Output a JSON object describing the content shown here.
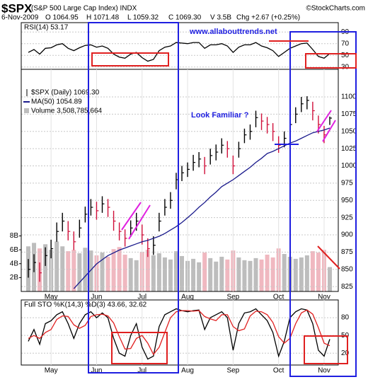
{
  "header": {
    "symbol": "$SPX",
    "name": "(S&P 500 Large Cap Index) INDX",
    "copyright": "©StockCharts.com",
    "date": "6-Nov-2009",
    "quote": [
      "O 1064.95",
      "H 1071.48",
      "L 1059.32",
      "C 1069.30",
      "V 3.5B",
      "Chg +2.67 (+0.25%)"
    ]
  },
  "annotations": [
    "www.allabouttrends.net",
    "Look Familiar ?"
  ],
  "chart_data": [
    {
      "type": "line",
      "title": "RSI(14) 53.17",
      "color": "#000000",
      "values": [
        55,
        60,
        52,
        62,
        63,
        68,
        70,
        62,
        58,
        63,
        67,
        68,
        64,
        66,
        62,
        52,
        47,
        45,
        52,
        55,
        46,
        40,
        43,
        58,
        64,
        66,
        72,
        71,
        70,
        72,
        72,
        62,
        68,
        68,
        70,
        66,
        55,
        64,
        68,
        68,
        72,
        66,
        63,
        58,
        48,
        55,
        62,
        66,
        70,
        71,
        60,
        48,
        45,
        53.17
      ],
      "ylim": [
        26,
        106
      ],
      "yticks": [
        90,
        70,
        50,
        30
      ]
    },
    {
      "type": "ohlc",
      "title": "$SPX (Daily) 1069.30",
      "categories": [
        null,
        null,
        null,
        null,
        "May",
        null,
        null,
        null,
        null,
        null,
        null,
        null,
        "Jun",
        null,
        null,
        null,
        null,
        null,
        null,
        null,
        "Jul",
        null,
        null,
        null,
        null,
        null,
        null,
        null,
        "Aug",
        null,
        null,
        null,
        null,
        null,
        null,
        null,
        "Sep",
        null,
        null,
        null,
        null,
        null,
        null,
        null,
        "Oct",
        null,
        null,
        null,
        null,
        null,
        null,
        null,
        "Nov",
        null
      ],
      "high": [
        865,
        872,
        860,
        882,
        893,
        918,
        932,
        920,
        905,
        922,
        941,
        952,
        948,
        956,
        952,
        935,
        918,
        908,
        921,
        932,
        915,
        895,
        898,
        932,
        952,
        962,
        990,
        1000,
        1005,
        1016,
        1020,
        1013,
        1025,
        1031,
        1040,
        1036,
        1015,
        1035,
        1054,
        1060,
        1080,
        1076,
        1071,
        1062,
        1043,
        1050,
        1070,
        1085,
        1100,
        1101,
        1093,
        1073,
        1058,
        1071.48
      ],
      "low": [
        838,
        846,
        832,
        855,
        866,
        890,
        905,
        892,
        878,
        896,
        918,
        928,
        922,
        932,
        926,
        906,
        892,
        883,
        897,
        906,
        886,
        868,
        871,
        905,
        928,
        938,
        966,
        978,
        984,
        993,
        998,
        988,
        1002,
        1008,
        1018,
        1012,
        988,
        1012,
        1033,
        1038,
        1056,
        1052,
        1047,
        1036,
        1019,
        1027,
        1046,
        1062,
        1078,
        1082,
        1066,
        1047,
        1033,
        1059.32
      ],
      "close": [
        850,
        860,
        845,
        870,
        880,
        905,
        920,
        905,
        890,
        910,
        930,
        940,
        935,
        945,
        940,
        920,
        905,
        895,
        910,
        920,
        900,
        880,
        885,
        920,
        940,
        950,
        980,
        990,
        995,
        1005,
        1010,
        1000,
        1015,
        1020,
        1030,
        1025,
        1000,
        1025,
        1045,
        1050,
        1070,
        1065,
        1060,
        1050,
        1030,
        1040,
        1060,
        1075,
        1090,
        1095,
        1080,
        1060,
        1045,
        1069.3
      ],
      "ma": {
        "name": "MA(50) 1054.89",
        "color": "#1a1a8c",
        "values": [
          null,
          null,
          null,
          null,
          null,
          null,
          null,
          null,
          822,
          831,
          840,
          849,
          858,
          864,
          870,
          874,
          878,
          881,
          884,
          887,
          890,
          892,
          895,
          898,
          902,
          907,
          912,
          918,
          925,
          932,
          940,
          947,
          955,
          962,
          970,
          975,
          980,
          986,
          992,
          998,
          1005,
          1011,
          1018,
          1021,
          1025,
          1029,
          1033,
          1036,
          1040,
          1044,
          1048,
          1050,
          1052,
          1054.89
        ]
      },
      "volume": {
        "name": "Volume 3,508,785,664",
        "values": [
          6.5,
          7,
          6.2,
          6.8,
          6,
          7.2,
          6.5,
          5.8,
          6,
          5.5,
          6.3,
          5.9,
          5.2,
          5.6,
          5,
          6.1,
          6.4,
          5.3,
          4.8,
          4.5,
          5.7,
          6,
          5.2,
          5.5,
          4.9,
          4.6,
          5.8,
          5.1,
          4.4,
          4.7,
          4.2,
          5.6,
          4.8,
          4.3,
          5,
          4.6,
          5.9,
          4.9,
          4.5,
          4.4,
          4.8,
          4.6,
          5.3,
          4.9,
          6.2,
          5.4,
          5,
          4.7,
          4.9,
          5.2,
          5.8,
          5.6,
          6,
          3.51
        ],
        "ylim": [
          0,
          32
        ],
        "yticks": [
          {
            "value": 2,
            "label": "2B"
          },
          {
            "value": 4,
            "label": "4B"
          },
          {
            "value": 6,
            "label": "6B"
          },
          {
            "value": 8,
            "label": "8B"
          }
        ]
      },
      "ylim": [
        818,
        1140
      ],
      "yticks": [
        825,
        850,
        875,
        900,
        925,
        950,
        975,
        1000,
        1025,
        1050,
        1075,
        1100
      ]
    },
    {
      "type": "line",
      "title": "Full STO %K(14,3) %D(3) 43.66, 32.62",
      "categories": [
        null,
        null,
        null,
        null,
        "May",
        null,
        null,
        null,
        null,
        null,
        null,
        null,
        "Jun",
        null,
        null,
        null,
        null,
        null,
        null,
        null,
        "Jul",
        null,
        null,
        null,
        null,
        null,
        null,
        null,
        "Aug",
        null,
        null,
        null,
        null,
        null,
        null,
        null,
        "Sep",
        null,
        null,
        null,
        null,
        null,
        null,
        null,
        "Oct",
        null,
        null,
        null,
        null,
        null,
        null,
        null,
        "Nov",
        null
      ],
      "series": [
        {
          "color": "#000000",
          "values": [
            40,
            60,
            35,
            70,
            75,
            85,
            90,
            70,
            45,
            70,
            85,
            90,
            80,
            88,
            80,
            45,
            20,
            15,
            50,
            70,
            30,
            10,
            15,
            65,
            85,
            90,
            95,
            92,
            90,
            92,
            93,
            60,
            80,
            85,
            90,
            80,
            25,
            70,
            88,
            90,
            95,
            85,
            75,
            55,
            15,
            40,
            80,
            90,
            95,
            93,
            70,
            25,
            15,
            43.66
          ]
        },
        {
          "color": "#e02020",
          "values": [
            45,
            50,
            45,
            55,
            60,
            77,
            83,
            82,
            68,
            62,
            67,
            82,
            85,
            86,
            83,
            71,
            48,
            27,
            28,
            45,
            50,
            37,
            18,
            30,
            55,
            80,
            90,
            92,
            92,
            91,
            92,
            82,
            78,
            75,
            85,
            85,
            65,
            58,
            61,
            83,
            91,
            90,
            85,
            72,
            48,
            37,
            45,
            70,
            88,
            93,
            86,
            63,
            37,
            32.62
          ]
        }
      ],
      "ylim": [
        0,
        110
      ],
      "yticks": [
        80,
        50,
        20
      ]
    }
  ]
}
